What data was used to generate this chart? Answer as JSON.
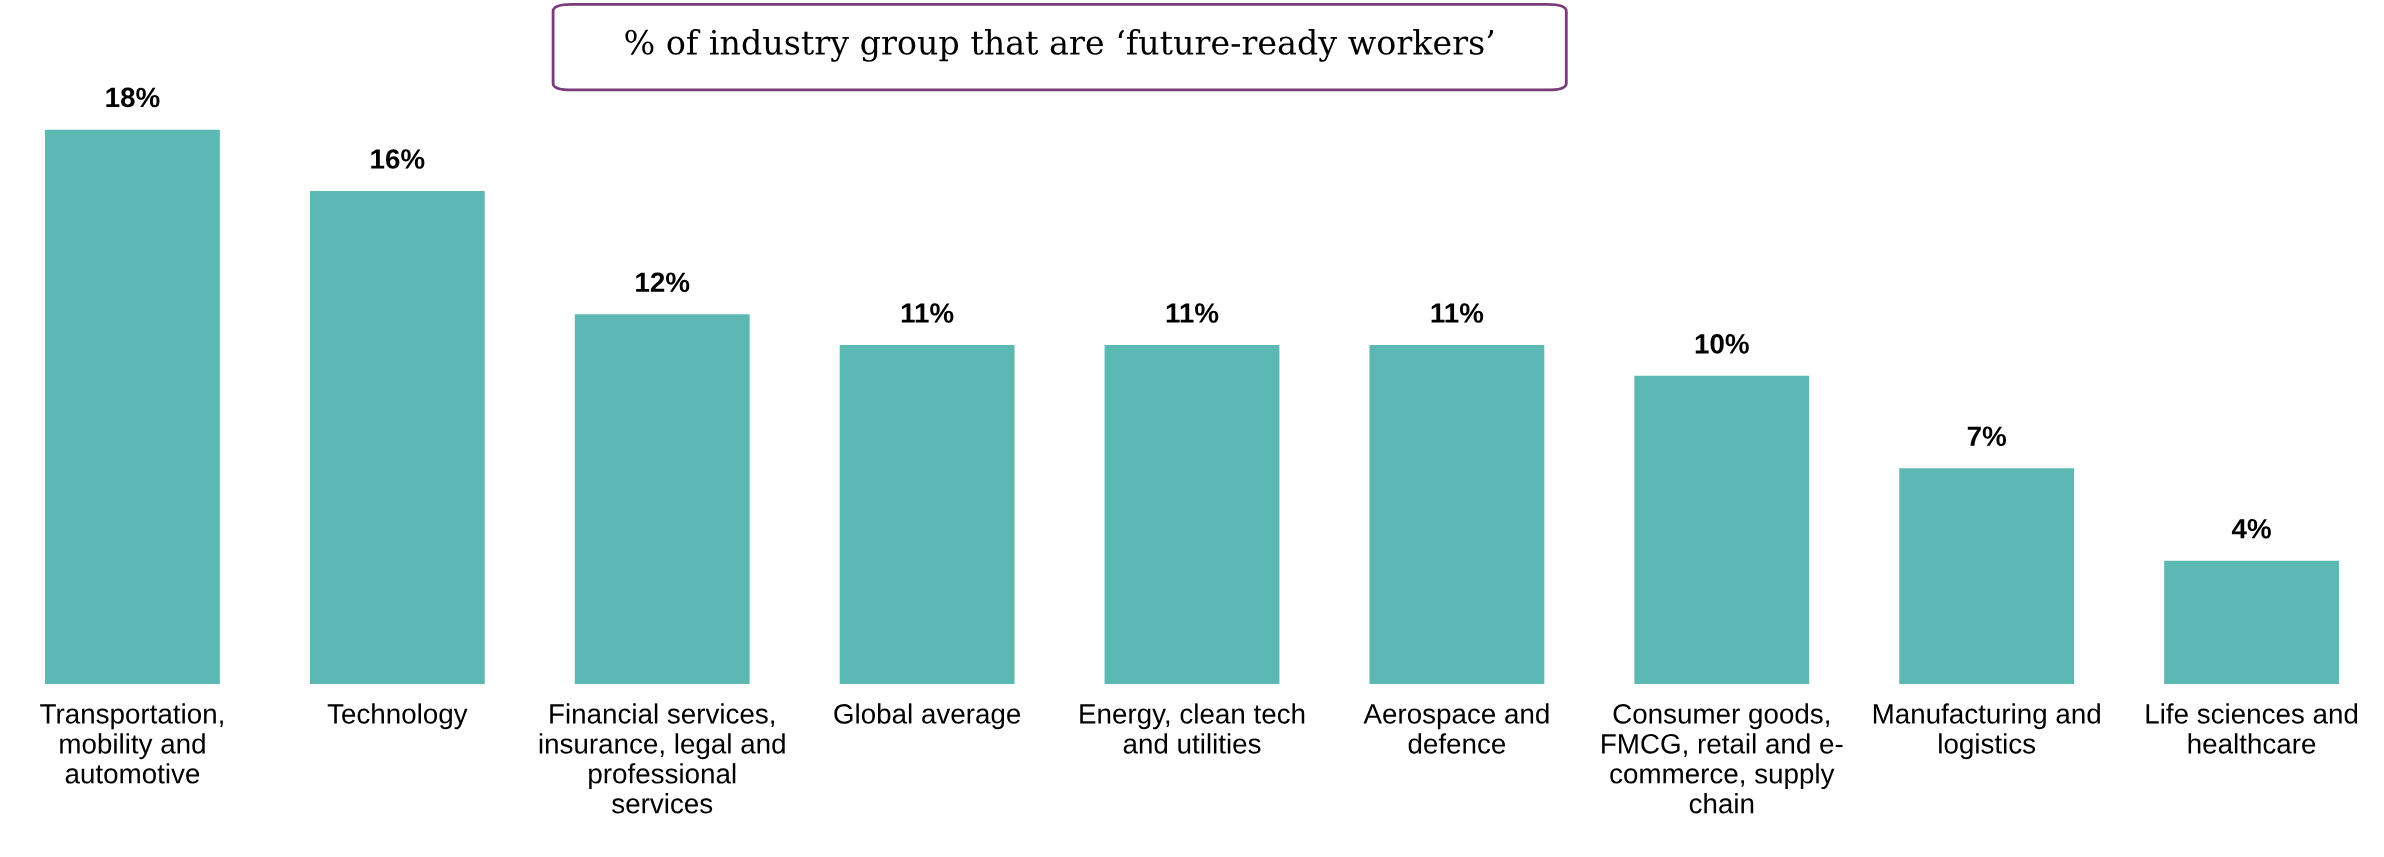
{
  "chart_data": {
    "type": "bar",
    "title": "% of industry group that are ‘future-ready workers’",
    "categories": [
      "Transportation,\nmobility and\nautomotive",
      "Technology",
      "Financial services,\ninsurance, legal and\nprofessional\nservices",
      "Global average",
      "Energy, clean tech\nand utilities",
      "Aerospace and\ndefence",
      "Consumer goods,\nFMCG, retail and e-\ncommerce, supply\nchain",
      "Manufacturing and\nlogistics",
      "Life sciences and\nhealthcare"
    ],
    "values": [
      18,
      16,
      12,
      11,
      11,
      11,
      10,
      7,
      4
    ],
    "value_labels": [
      "18%",
      "16%",
      "12%",
      "11%",
      "11%",
      "11%",
      "10%",
      "7%",
      "4%"
    ],
    "color": "#5cb8b2"
  }
}
